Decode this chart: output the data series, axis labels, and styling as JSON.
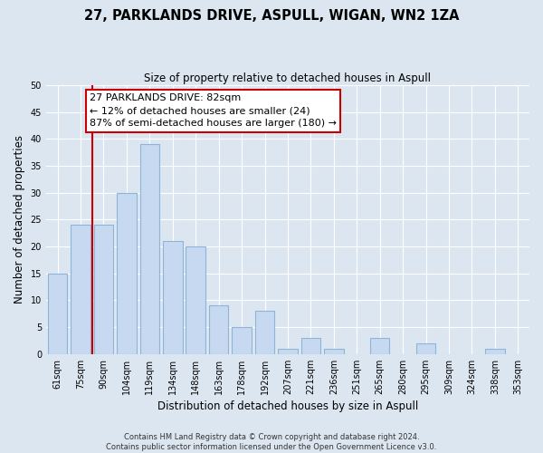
{
  "title": "27, PARKLANDS DRIVE, ASPULL, WIGAN, WN2 1ZA",
  "subtitle": "Size of property relative to detached houses in Aspull",
  "xlabel": "Distribution of detached houses by size in Aspull",
  "ylabel": "Number of detached properties",
  "categories": [
    "61sqm",
    "75sqm",
    "90sqm",
    "104sqm",
    "119sqm",
    "134sqm",
    "148sqm",
    "163sqm",
    "178sqm",
    "192sqm",
    "207sqm",
    "221sqm",
    "236sqm",
    "251sqm",
    "265sqm",
    "280sqm",
    "295sqm",
    "309sqm",
    "324sqm",
    "338sqm",
    "353sqm"
  ],
  "values": [
    15,
    24,
    24,
    30,
    39,
    21,
    20,
    9,
    5,
    8,
    1,
    3,
    1,
    0,
    3,
    0,
    2,
    0,
    0,
    1,
    0
  ],
  "bar_color": "#c6d9f0",
  "bar_edge_color": "#8eb4d8",
  "vline_color": "#cc0000",
  "ylim": [
    0,
    50
  ],
  "yticks": [
    0,
    5,
    10,
    15,
    20,
    25,
    30,
    35,
    40,
    45,
    50
  ],
  "annotation_title": "27 PARKLANDS DRIVE: 82sqm",
  "annotation_line1": "← 12% of detached houses are smaller (24)",
  "annotation_line2": "87% of semi-detached houses are larger (180) →",
  "annotation_box_color": "#ffffff",
  "annotation_box_edge": "#cc0000",
  "footer_line1": "Contains HM Land Registry data © Crown copyright and database right 2024.",
  "footer_line2": "Contains public sector information licensed under the Open Government Licence v3.0.",
  "background_color": "#dce6f1",
  "grid_color": "#ffffff"
}
